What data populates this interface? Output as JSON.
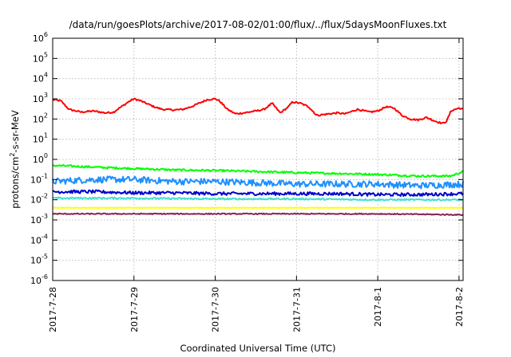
{
  "chart_data": {
    "type": "line",
    "title": "/data/run/goesPlots/archive/2017-08-02/01:00/flux/../flux/5daysMoonFluxes.txt",
    "xlabel": "Coordinated Universal Time (UTC)",
    "ylabel_main": "protons/cm",
    "ylabel_sup": "2",
    "ylabel_tail": "-s-sr-MeV",
    "yscale": "log",
    "ylim": [
      1e-06,
      1000000.0
    ],
    "xlim": [
      0,
      5.05
    ],
    "grid": true,
    "x_ticks": [
      {
        "x": 0,
        "label": "2017-7-28"
      },
      {
        "x": 1,
        "label": "2017-7-29"
      },
      {
        "x": 2,
        "label": "2017-7-30"
      },
      {
        "x": 3,
        "label": "2017-7-31"
      },
      {
        "x": 4,
        "label": "2017-8-1"
      },
      {
        "x": 5,
        "label": "2017-8-2"
      }
    ],
    "y_ticks": [
      {
        "exp": -6,
        "label_base": "10",
        "label_exp": "-6"
      },
      {
        "exp": -5,
        "label_base": "10",
        "label_exp": "-5"
      },
      {
        "exp": -4,
        "label_base": "10",
        "label_exp": "-4"
      },
      {
        "exp": -3,
        "label_base": "10",
        "label_exp": "-3"
      },
      {
        "exp": -2,
        "label_base": "10",
        "label_exp": "-2"
      },
      {
        "exp": -1,
        "label_base": "10",
        "label_exp": "-1"
      },
      {
        "exp": 0,
        "label_base": "10",
        "label_exp": "0"
      },
      {
        "exp": 1,
        "label_base": "10",
        "label_exp": "1"
      },
      {
        "exp": 2,
        "label_base": "10",
        "label_exp": "2"
      },
      {
        "exp": 3,
        "label_base": "10",
        "label_exp": "3"
      },
      {
        "exp": 4,
        "label_base": "10",
        "label_exp": "4"
      },
      {
        "exp": 5,
        "label_base": "10",
        "label_exp": "5"
      },
      {
        "exp": 6,
        "label_base": "10",
        "label_exp": "6"
      }
    ],
    "series": [
      {
        "color": "#ff0000",
        "jitter": 0.04,
        "x": [
          0,
          0.1,
          0.2,
          0.35,
          0.5,
          0.65,
          0.75,
          0.82,
          0.88,
          0.93,
          1.0,
          1.08,
          1.15,
          1.25,
          1.35,
          1.5,
          1.6,
          1.7,
          1.8,
          1.9,
          2.0,
          2.05,
          2.15,
          2.25,
          2.35,
          2.5,
          2.6,
          2.7,
          2.8,
          2.9,
          2.95,
          3.05,
          3.15,
          3.25,
          3.35,
          3.5,
          3.6,
          3.75,
          3.9,
          4.0,
          4.1,
          4.2,
          4.3,
          4.4,
          4.5,
          4.6,
          4.7,
          4.8,
          4.85,
          4.9,
          4.95,
          5.0,
          5.05
        ],
        "y": [
          900,
          800,
          300,
          220,
          250,
          200,
          220,
          350,
          500,
          700,
          1000,
          800,
          600,
          400,
          300,
          280,
          300,
          400,
          600,
          900,
          1000,
          800,
          300,
          180,
          200,
          250,
          300,
          600,
          200,
          400,
          700,
          600,
          400,
          150,
          170,
          200,
          180,
          300,
          220,
          250,
          400,
          350,
          150,
          100,
          90,
          120,
          80,
          60,
          80,
          250,
          300,
          350,
          300
        ]
      },
      {
        "color": "#00ff00",
        "jitter": 0.05,
        "x": [
          0,
          0.3,
          0.6,
          1.0,
          1.5,
          2.0,
          2.5,
          3.0,
          3.5,
          4.0,
          4.5,
          4.9,
          5.05
        ],
        "y": [
          0.5,
          0.45,
          0.4,
          0.35,
          0.3,
          0.28,
          0.25,
          0.22,
          0.2,
          0.18,
          0.15,
          0.15,
          0.25
        ]
      },
      {
        "color": "#1e90ff",
        "jitter": 0.16,
        "x": [
          0,
          0.5,
          1.0,
          1.5,
          2.0,
          2.5,
          3.0,
          3.5,
          4.0,
          4.5,
          5.05
        ],
        "y": [
          0.08,
          0.1,
          0.1,
          0.08,
          0.08,
          0.07,
          0.06,
          0.06,
          0.06,
          0.05,
          0.06
        ]
      },
      {
        "color": "#0000cd",
        "jitter": 0.08,
        "x": [
          0,
          0.5,
          1.0,
          1.5,
          2.0,
          2.5,
          3.0,
          3.5,
          4.0,
          4.5,
          5.05
        ],
        "y": [
          0.025,
          0.025,
          0.022,
          0.022,
          0.02,
          0.02,
          0.02,
          0.02,
          0.018,
          0.018,
          0.02
        ]
      },
      {
        "color": "#40e0d0",
        "jitter": 0.04,
        "x": [
          0,
          1.0,
          2.0,
          3.0,
          4.0,
          5.05
        ],
        "y": [
          0.012,
          0.012,
          0.011,
          0.011,
          0.01,
          0.01
        ]
      },
      {
        "color": "#ffff00",
        "jitter": 0.01,
        "x": [
          0,
          1.0,
          2.0,
          3.0,
          4.0,
          5.05
        ],
        "y": [
          0.004,
          0.004,
          0.004,
          0.004,
          0.004,
          0.004
        ]
      },
      {
        "color": "#8b2252",
        "jitter": 0.025,
        "x": [
          0,
          1.0,
          2.0,
          3.0,
          4.0,
          5.05
        ],
        "y": [
          0.002,
          0.002,
          0.002,
          0.002,
          0.002,
          0.0018
        ]
      }
    ]
  }
}
